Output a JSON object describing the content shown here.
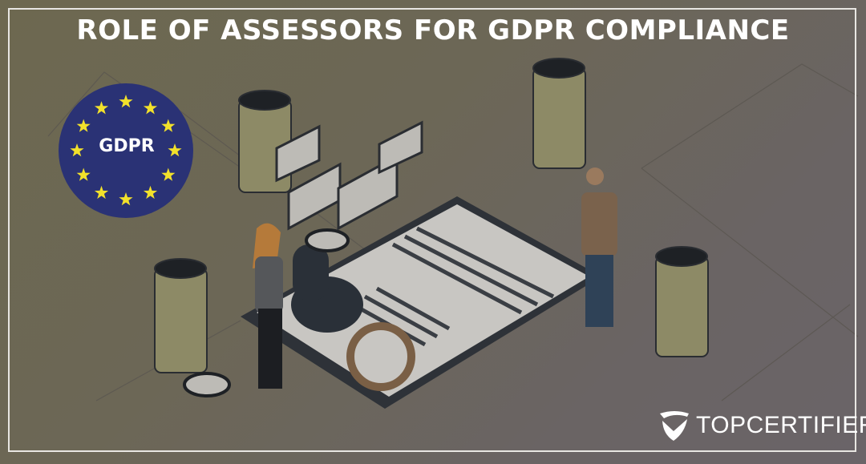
{
  "banner": {
    "title": "ROLE OF ASSESSORS FOR GDPR COMPLIANCE",
    "badge_text": "GDPR",
    "brand": "TOPCERTIFIER",
    "colors": {
      "badge": "#2a3275",
      "star": "#f2e12b",
      "title": "#ffffff"
    },
    "icons": [
      "eu-flag-badge",
      "shield-check-logo"
    ]
  }
}
